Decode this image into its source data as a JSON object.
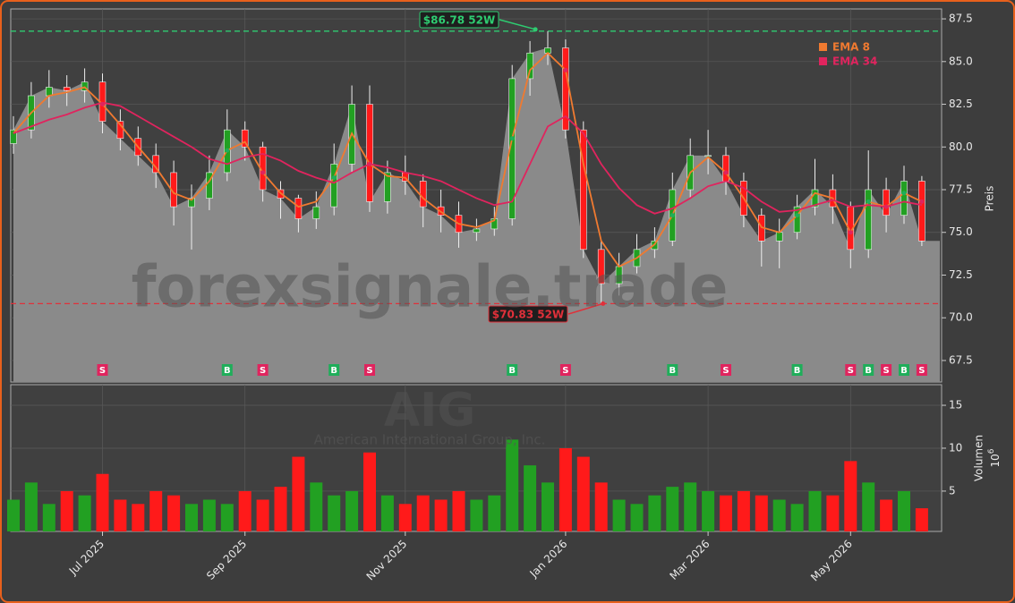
{
  "chart_data": {
    "type": "candlestick",
    "watermark": "forexsignale.trade",
    "symbol": "AIG",
    "company": "American International Group, Inc.",
    "categories": [
      null,
      null,
      null,
      null,
      null,
      "Jul 2025",
      null,
      null,
      null,
      null,
      null,
      null,
      null,
      "Sep 2025",
      null,
      null,
      null,
      null,
      null,
      null,
      null,
      null,
      "Nov 2025",
      null,
      null,
      null,
      null,
      null,
      null,
      null,
      null,
      "Jan 2026",
      null,
      null,
      null,
      null,
      null,
      null,
      null,
      "Mar 2026",
      null,
      null,
      null,
      null,
      null,
      null,
      null,
      "May 2026",
      null,
      null,
      null,
      null
    ],
    "open": [
      80.2,
      81,
      83,
      83.5,
      83.3,
      83.8,
      81.5,
      80.5,
      79.5,
      78.5,
      76.5,
      77,
      78.5,
      81,
      80,
      77.5,
      77,
      75.8,
      76.5,
      79,
      82.5,
      76.8,
      78.5,
      78,
      76.5,
      76,
      75,
      75.2,
      75.8,
      84,
      85.5,
      85.8,
      81,
      74,
      72,
      73,
      74,
      74.5,
      77.5,
      79.5,
      79.5,
      78,
      76,
      74.5,
      75,
      76.5,
      77.5,
      76.5,
      74,
      77.5,
      76,
      78
    ],
    "high": [
      81.8,
      83.8,
      84.5,
      84.2,
      84.6,
      84.3,
      82.2,
      81.2,
      80.2,
      79.2,
      77.8,
      79.5,
      82.2,
      81.5,
      80.3,
      78,
      77.2,
      77.4,
      80.2,
      83.6,
      83.6,
      79.2,
      79.5,
      78.4,
      77.5,
      76.8,
      75.8,
      76.5,
      84.8,
      86.2,
      86.78,
      86.3,
      81.5,
      74.5,
      73.8,
      74.9,
      75.3,
      78.5,
      80.5,
      81,
      80,
      78.5,
      76.4,
      75.8,
      77.2,
      79.3,
      78.4,
      76.8,
      79.8,
      78.2,
      78.9,
      78.3
    ],
    "low": [
      79.6,
      80.5,
      82.3,
      82.4,
      82.6,
      80.8,
      79.8,
      78.9,
      77.6,
      75.4,
      74,
      76.3,
      78,
      79.2,
      76.8,
      75.8,
      75,
      75.2,
      76,
      78.5,
      76.2,
      76.1,
      77.2,
      75.3,
      75,
      74.1,
      74.5,
      74.8,
      75.4,
      83,
      84.8,
      80.5,
      73.5,
      70.83,
      71.3,
      72.6,
      73.5,
      74.2,
      77,
      78.4,
      77.2,
      75.3,
      73,
      72.9,
      74.6,
      76,
      75.5,
      72.9,
      73.5,
      75,
      75.5,
      74.2
    ],
    "close": [
      81,
      83,
      83.5,
      83.3,
      83.8,
      81.5,
      80.5,
      79.5,
      78.5,
      76.5,
      77,
      78.5,
      81,
      80,
      77.5,
      77,
      75.8,
      76.5,
      79,
      82.5,
      76.8,
      78.5,
      78,
      76.5,
      76,
      75,
      75.2,
      75.8,
      84,
      85.5,
      85.8,
      81,
      74,
      72,
      73,
      74,
      74.5,
      77.5,
      79.5,
      79.5,
      78,
      76,
      74.5,
      75,
      76.5,
      77.5,
      76.5,
      74,
      77.5,
      76,
      78,
      74.5
    ],
    "up_color": "#22a022",
    "down_color": "#ff1a1a",
    "area_color": "#8a8a8a",
    "series": [
      {
        "name": "EMA 8",
        "color": "#f07a30",
        "values": [
          80.8,
          82,
          83,
          83.2,
          83.5,
          82.5,
          81.3,
          80,
          78.8,
          77.3,
          76.9,
          78,
          79.8,
          80.3,
          78.5,
          77.3,
          76.5,
          76.8,
          78.2,
          80.8,
          79,
          78.3,
          78.2,
          77,
          76.2,
          75.5,
          75.3,
          75.7,
          80.5,
          84.5,
          85.5,
          84.5,
          79,
          74.5,
          73,
          73.5,
          74.3,
          76,
          78.5,
          79.4,
          78.5,
          77,
          75.3,
          75,
          76,
          77.3,
          77,
          75,
          76.8,
          76.5,
          77.3,
          76.8
        ]
      },
      {
        "name": "EMA 34",
        "color": "#e0245e",
        "values": [
          80.8,
          81.2,
          81.6,
          81.9,
          82.3,
          82.6,
          82.4,
          81.8,
          81.2,
          80.6,
          80,
          79.3,
          79,
          79.4,
          79.6,
          79.2,
          78.6,
          78.2,
          77.9,
          78.5,
          79,
          78.8,
          78.5,
          78.3,
          78,
          77.5,
          77,
          76.6,
          76.8,
          79,
          81.2,
          81.8,
          80.8,
          79,
          77.6,
          76.6,
          76.1,
          76.4,
          77,
          77.7,
          78,
          77.6,
          76.8,
          76.2,
          76.3,
          76.6,
          76.9,
          76.5,
          76.6,
          76.5,
          76.8,
          76.6
        ]
      }
    ],
    "signals": [
      null,
      null,
      null,
      null,
      null,
      "S",
      null,
      null,
      null,
      null,
      null,
      null,
      "B",
      null,
      "S",
      null,
      null,
      null,
      "B",
      null,
      "S",
      null,
      null,
      null,
      null,
      null,
      null,
      null,
      "B",
      null,
      null,
      "S",
      null,
      null,
      null,
      null,
      null,
      "B",
      null,
      null,
      "S",
      null,
      null,
      null,
      "B",
      null,
      null,
      "S",
      "B",
      "S",
      "B",
      "S"
    ],
    "buy_color": "#1fae5a",
    "sell_color": "#e0245e",
    "high_52w": {
      "value": 86.78,
      "label": "$86.78 52W",
      "color": "#2ecc71"
    },
    "low_52w": {
      "value": 70.83,
      "label": "$70.83 52W",
      "color": "#e0303a"
    },
    "ylabel": "Preis",
    "ylim": [
      66.24,
      88.08
    ],
    "yticks": [
      67.5,
      {
        "value": 70,
        "label": "70.0"
      },
      72.5,
      {
        "value": 75,
        "label": "75.0"
      },
      77.5,
      {
        "value": 80,
        "label": "80.0"
      },
      82.5,
      {
        "value": 85,
        "label": "85.0"
      },
      87.5
    ],
    "volume": {
      "ylabel": "Volumen",
      "unit_base": "10",
      "unit_exp": "6",
      "ylim": [
        0.3,
        17.4
      ],
      "yticks": [
        5,
        10,
        15
      ],
      "values": [
        4,
        6,
        3.5,
        5,
        4.5,
        7,
        4,
        3.5,
        5,
        4.5,
        3.5,
        4,
        3.5,
        5,
        4,
        5.5,
        9,
        6,
        4.5,
        5,
        9.5,
        4.5,
        3.5,
        4.5,
        4,
        5,
        4,
        4.5,
        11,
        8,
        6,
        10,
        9,
        6,
        4,
        3.5,
        4.5,
        5.5,
        6,
        5,
        4.5,
        5,
        4.5,
        4,
        3.5,
        5,
        4.5,
        8.5,
        6,
        4,
        5,
        3
      ]
    },
    "grid": true,
    "legend": "upper right"
  }
}
